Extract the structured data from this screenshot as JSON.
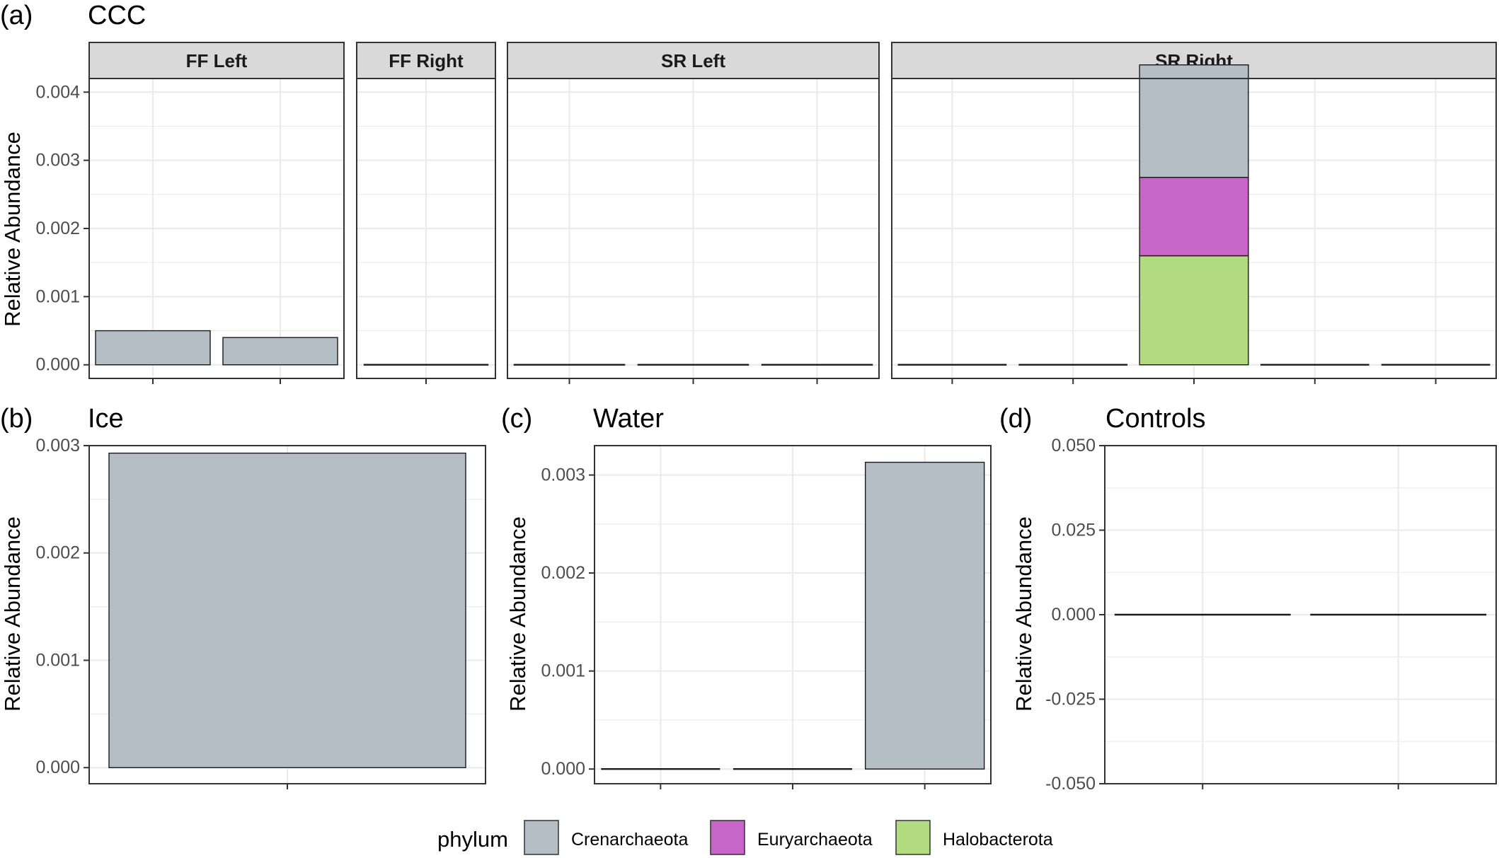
{
  "colors": {
    "Crenarchaeota": "#B4BEC4",
    "Euryarchaeota": "#C865C8",
    "Halobacterota": "#B2DA7E",
    "strip_fill": "#D9D9D9",
    "grid": "#EBEBEB",
    "border": "#333333"
  },
  "legend": {
    "title": "phylum",
    "items": [
      "Crenarchaeota",
      "Euryarchaeota",
      "Halobacterota"
    ]
  },
  "chart_data": [
    {
      "panel": "(a)",
      "title": "CCC",
      "type": "bar",
      "stacked": true,
      "ylabel": "Relative Abundance",
      "ylim": [
        -0.0002,
        0.0042
      ],
      "yticks": [
        "0.000",
        "0.001",
        "0.002",
        "0.003",
        "0.004"
      ],
      "facets": [
        {
          "label": "FF Left",
          "bars": [
            {
              "Crenarchaeota": 0.0005
            },
            {
              "Crenarchaeota": 0.0004
            }
          ]
        },
        {
          "label": "FF Right",
          "bars": [
            {}
          ]
        },
        {
          "label": "SR Left",
          "bars": [
            {},
            {},
            {}
          ]
        },
        {
          "label": "SR Right",
          "bars": [
            {},
            {},
            {
              "Halobacterota": 0.0016,
              "Euryarchaeota": 0.00115,
              "Crenarchaeota": 0.00165
            },
            {},
            {}
          ]
        }
      ]
    },
    {
      "panel": "(b)",
      "title": "Ice",
      "type": "bar",
      "stacked": true,
      "ylabel": "Relative Abundance",
      "ylim": [
        -0.00015,
        0.003
      ],
      "yticks": [
        "0.000",
        "0.001",
        "0.002",
        "0.003"
      ],
      "bars": [
        {
          "Crenarchaeota": 0.00293
        }
      ]
    },
    {
      "panel": "(c)",
      "title": "Water",
      "type": "bar",
      "stacked": true,
      "ylabel": "Relative Abundance",
      "ylim": [
        -0.00015,
        0.0033
      ],
      "yticks": [
        "0.000",
        "0.001",
        "0.002",
        "0.003"
      ],
      "bars": [
        {},
        {},
        {
          "Crenarchaeota": 0.00313
        }
      ]
    },
    {
      "panel": "(d)",
      "title": "Controls",
      "type": "bar",
      "stacked": true,
      "ylabel": "Relative Abundance",
      "ylim": [
        -0.05,
        0.05
      ],
      "yticks": [
        "-0.050",
        "-0.025",
        "0.000",
        "0.025",
        "0.050"
      ],
      "bars": [
        {},
        {}
      ]
    }
  ]
}
